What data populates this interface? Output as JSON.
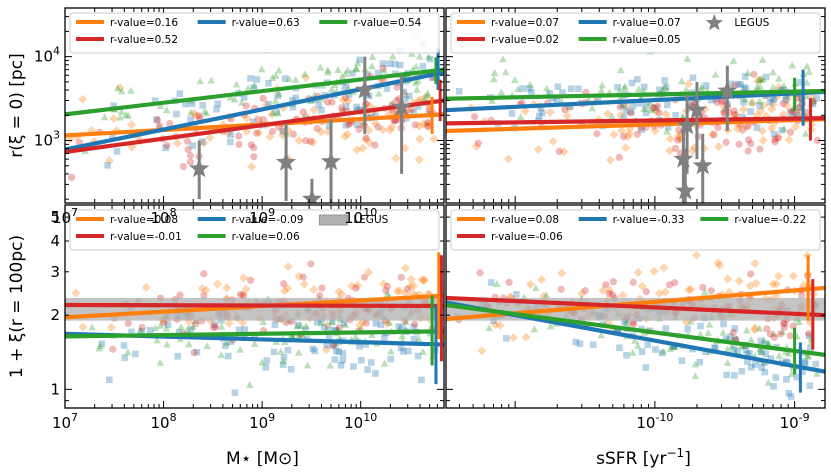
{
  "colors": {
    "orange": "#ff7f0e",
    "blue": "#1f77b4",
    "green": "#2ca02c",
    "red": "#d62728",
    "legus": "#808080",
    "band": "#b0b0b0"
  },
  "chart_data": [
    {
      "type": "scatter",
      "panel": "top-left",
      "xscale": "log",
      "yscale": "log",
      "xlim": [
        10000000.0,
        70000000000.0
      ],
      "ylim": [
        180,
        38000
      ],
      "xlabel": "",
      "ylabel": "r(ξ = 0) [pc]",
      "xticklabels": [
        "10^7",
        "10^8",
        "10^9",
        "10^10"
      ],
      "yticklabels": [
        "10^3",
        "10^4"
      ],
      "legend": {
        "position": "top",
        "entries": [
          {
            "label": "r-value=0.16",
            "color": "orange"
          },
          {
            "label": "r-value=0.63",
            "color": "blue"
          },
          {
            "label": "r-value=0.54",
            "color": "green"
          },
          {
            "label": "r-value=0.52",
            "color": "red"
          }
        ]
      },
      "fits": [
        {
          "color": "orange",
          "x": [
            10000000.0,
            70000000000.0
          ],
          "y": [
            1150,
            2050
          ]
        },
        {
          "color": "blue",
          "x": [
            10000000.0,
            70000000000.0
          ],
          "y": [
            780,
            6500
          ]
        },
        {
          "color": "green",
          "x": [
            10000000.0,
            70000000000.0
          ],
          "y": [
            2050,
            7000
          ]
        },
        {
          "color": "red",
          "x": [
            10000000.0,
            70000000000.0
          ],
          "y": [
            730,
            3000
          ]
        }
      ],
      "legus_points": [
        {
          "x": 230000000.0,
          "y": 460,
          "lo": 200,
          "hi": 1000
        },
        {
          "x": 1750000000.0,
          "y": 550,
          "lo": 190,
          "hi": 1600
        },
        {
          "x": 3200000000.0,
          "y": 200,
          "lo": 180,
          "hi": 350
        },
        {
          "x": 5000000000.0,
          "y": 560,
          "lo": 180,
          "hi": 1800
        },
        {
          "x": 11000000000.0,
          "y": 4000,
          "lo": 1200,
          "hi": 10000
        },
        {
          "x": 26000000000.0,
          "y": 2500,
          "lo": 400,
          "hi": 6000
        }
      ],
      "errorbars": [
        {
          "color": "orange",
          "x": 53000000000.0,
          "y": 2000,
          "lo": 1200,
          "hi": 3300
        },
        {
          "color": "green",
          "x": 58000000000.0,
          "y": 6800,
          "lo": 4700,
          "hi": 9800
        },
        {
          "color": "blue",
          "x": 61000000000.0,
          "y": 7000,
          "lo": 4000,
          "hi": 12500
        },
        {
          "color": "red",
          "x": 64000000000.0,
          "y": 3000,
          "lo": 1700,
          "hi": 5300
        }
      ]
    },
    {
      "type": "scatter",
      "panel": "top-right",
      "xscale": "log",
      "yscale": "log",
      "xlim": [
        3.2e-12,
        1.65e-09
      ],
      "ylim": [
        180,
        38000
      ],
      "xlabel": "",
      "ylabel": "",
      "legend": {
        "position": "top",
        "entries": [
          {
            "label": "r-value=0.07",
            "color": "orange"
          },
          {
            "label": "r-value=0.07",
            "color": "blue"
          },
          {
            "label": "LEGUS",
            "color": "legus",
            "marker": "star"
          },
          {
            "label": "r-value=0.02",
            "color": "red"
          },
          {
            "label": "r-value=0.05",
            "color": "green"
          }
        ]
      },
      "fits": [
        {
          "color": "orange",
          "x": [
            3.2e-12,
            1.65e-09
          ],
          "y": [
            1300,
            1800
          ]
        },
        {
          "color": "blue",
          "x": [
            3.2e-12,
            1.65e-09
          ],
          "y": [
            2300,
            3800
          ]
        },
        {
          "color": "green",
          "x": [
            3.2e-12,
            1.65e-09
          ],
          "y": [
            3150,
            3900
          ]
        },
        {
          "color": "red",
          "x": [
            3.2e-12,
            1.65e-09
          ],
          "y": [
            1600,
            1850
          ]
        }
      ],
      "legus_points": [
        {
          "x": 1.6e-10,
          "y": 600,
          "lo": 180,
          "hi": 1500
        },
        {
          "x": 1.65e-10,
          "y": 250,
          "lo": 180,
          "hi": 800
        },
        {
          "x": 1.7e-10,
          "y": 1500,
          "lo": 400,
          "hi": 3500
        },
        {
          "x": 2.2e-10,
          "y": 500,
          "lo": 180,
          "hi": 1200
        },
        {
          "x": 2e-10,
          "y": 2300,
          "lo": 600,
          "hi": 5000
        },
        {
          "x": 3.3e-10,
          "y": 3900,
          "lo": 1300,
          "hi": 7800
        }
      ],
      "errorbars": [
        {
          "color": "green",
          "x": 1e-09,
          "y": 3600,
          "lo": 2300,
          "hi": 5600
        },
        {
          "color": "blue",
          "x": 1.15e-09,
          "y": 3800,
          "lo": 1500,
          "hi": 7000
        },
        {
          "color": "red",
          "x": 1.3e-09,
          "y": 1850,
          "lo": 1000,
          "hi": 3200
        }
      ]
    },
    {
      "type": "scatter",
      "panel": "bottom-left",
      "xscale": "log",
      "yscale": "log",
      "xlim": [
        10000000.0,
        70000000000.0
      ],
      "ylim": [
        0.84,
        5.6
      ],
      "xlabel": "M⋆ [M⊙]",
      "ylabel": "1 + ξ(r = 100pc)",
      "xticklabels": [
        "10^7",
        "10^8",
        "10^9",
        "10^10"
      ],
      "yticklabels": [
        "1",
        "2",
        "3",
        "4",
        "5"
      ],
      "legend": {
        "position": "top",
        "entries": [
          {
            "label": "r-value=0.08",
            "color": "orange"
          },
          {
            "label": "r-value=-0.09",
            "color": "blue"
          },
          {
            "label": "LEGUS",
            "color": "legus",
            "marker": "band"
          },
          {
            "label": "r-value=-0.01",
            "color": "red"
          },
          {
            "label": "r-value=0.06",
            "color": "green"
          }
        ]
      },
      "band": [
        1.9,
        2.35
      ],
      "fits": [
        {
          "color": "orange",
          "x": [
            10000000.0,
            70000000000.0
          ],
          "y": [
            1.96,
            2.4
          ]
        },
        {
          "color": "blue",
          "x": [
            10000000.0,
            70000000000.0
          ],
          "y": [
            1.68,
            1.52
          ]
        },
        {
          "color": "green",
          "x": [
            10000000.0,
            70000000000.0
          ],
          "y": [
            1.64,
            1.72
          ]
        },
        {
          "color": "red",
          "x": [
            10000000.0,
            70000000000.0
          ],
          "y": [
            2.2,
            2.18
          ]
        }
      ],
      "errorbars": [
        {
          "color": "green",
          "x": 53000000000.0,
          "y": 1.72,
          "lo": 1.25,
          "hi": 2.4
        },
        {
          "color": "blue",
          "x": 58000000000.0,
          "y": 1.52,
          "lo": 1.05,
          "hi": 2.2
        },
        {
          "color": "orange",
          "x": 62000000000.0,
          "y": 2.4,
          "lo": 1.6,
          "hi": 3.6
        },
        {
          "color": "red",
          "x": 66000000000.0,
          "y": 2.18,
          "lo": 1.3,
          "hi": 3.5
        }
      ]
    },
    {
      "type": "scatter",
      "panel": "bottom-right",
      "xscale": "log",
      "yscale": "log",
      "xlim": [
        3.2e-12,
        1.65e-09
      ],
      "ylim": [
        0.84,
        5.6
      ],
      "xlabel": "sSFR [yr^-1]",
      "ylabel": "",
      "xticklabels": [
        "10^-10",
        "10^-9"
      ],
      "legend": {
        "position": "top",
        "entries": [
          {
            "label": "r-value=0.08",
            "color": "orange"
          },
          {
            "label": "r-value=-0.33",
            "color": "blue"
          },
          {
            "label": "r-value=-0.22",
            "color": "green"
          },
          {
            "label": "r-value=-0.06",
            "color": "red"
          }
        ]
      },
      "band": [
        1.9,
        2.35
      ],
      "fits": [
        {
          "color": "orange",
          "x": [
            3.2e-12,
            1.65e-09
          ],
          "y": [
            1.93,
            2.58
          ]
        },
        {
          "color": "blue",
          "x": [
            3.2e-12,
            1.65e-09
          ],
          "y": [
            2.25,
            1.18
          ]
        },
        {
          "color": "green",
          "x": [
            3.2e-12,
            1.65e-09
          ],
          "y": [
            2.2,
            1.38
          ]
        },
        {
          "color": "red",
          "x": [
            3.2e-12,
            1.65e-09
          ],
          "y": [
            2.35,
            2.0
          ]
        }
      ],
      "errorbars": [
        {
          "color": "green",
          "x": 1e-09,
          "y": 1.38,
          "lo": 1.15,
          "hi": 1.78
        },
        {
          "color": "blue",
          "x": 1.1e-09,
          "y": 1.2,
          "lo": 0.97,
          "hi": 1.55
        },
        {
          "color": "orange",
          "x": 1.25e-09,
          "y": 2.55,
          "lo": 1.9,
          "hi": 3.5
        },
        {
          "color": "red",
          "x": 1.35e-09,
          "y": 2.0,
          "lo": 1.45,
          "hi": 2.8
        }
      ]
    }
  ]
}
